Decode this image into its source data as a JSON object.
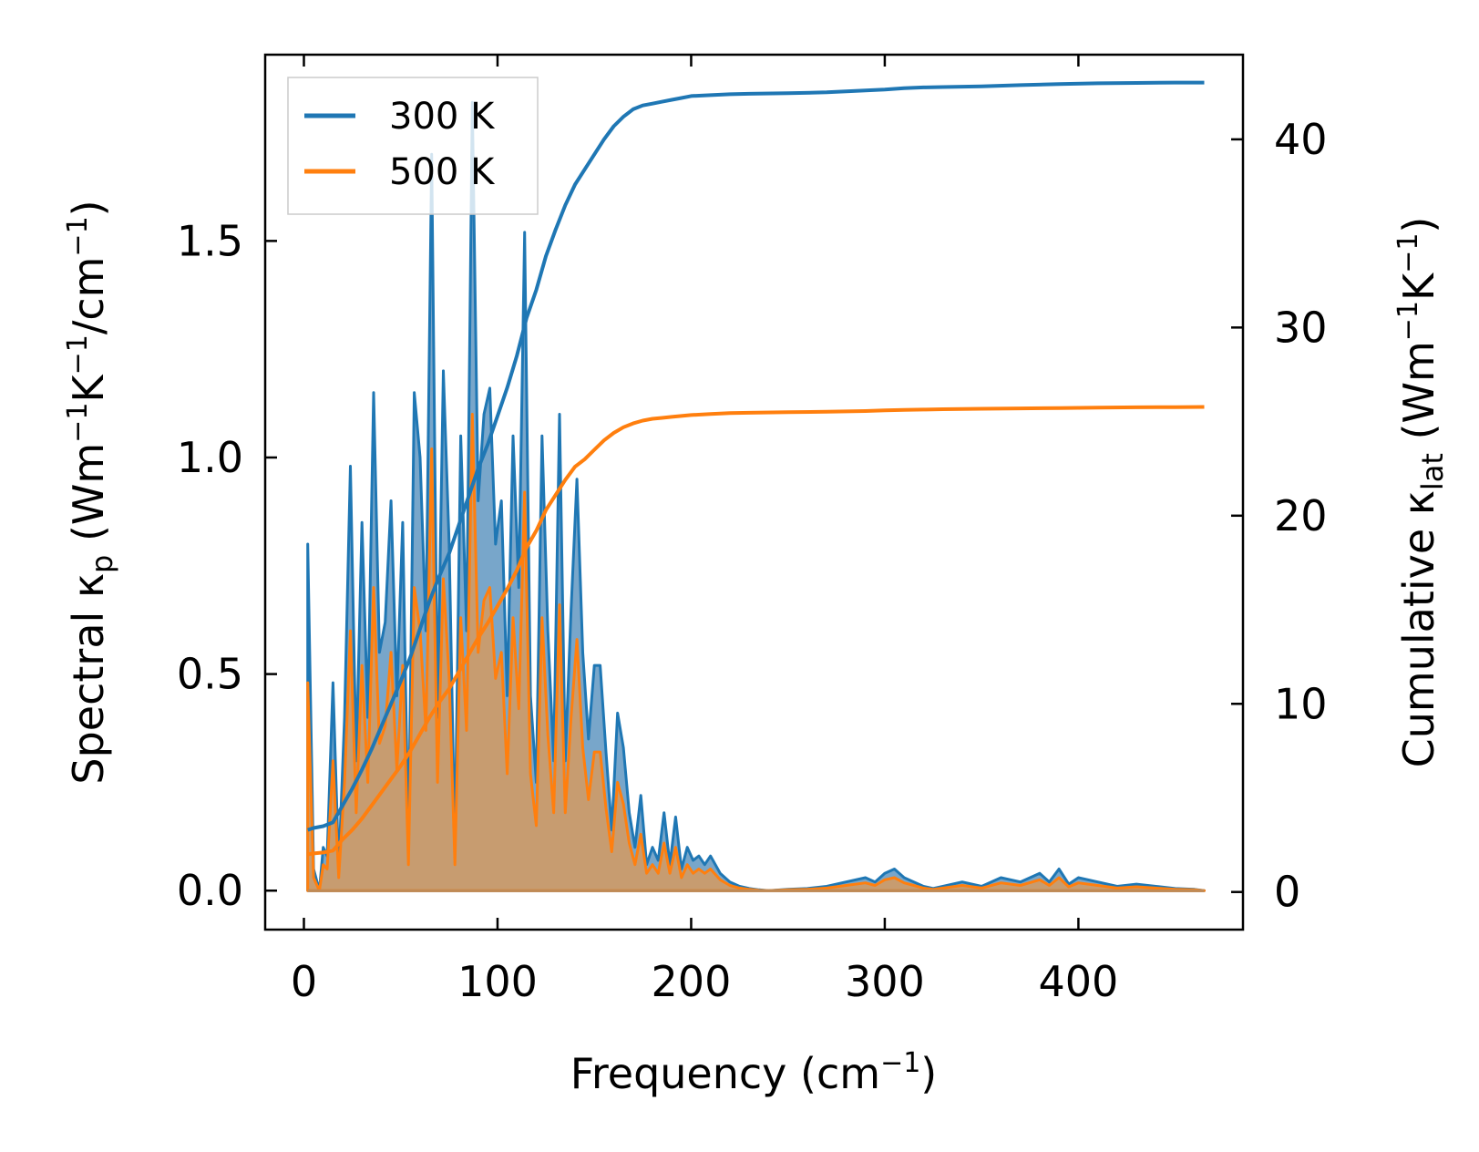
{
  "chart_data": {
    "type": "line",
    "xlabel": {
      "main": "Frequency (cm",
      "sup": "−1",
      "tail": ")"
    },
    "ylabel_left": {
      "p1": "Spectral κ",
      "sub": "p",
      "p2": " (Wm",
      "sup1": "−1",
      "p3": "K",
      "sup2": "−1",
      "p4": "/cm",
      "sup3": "−1",
      "p5": ")"
    },
    "ylabel_right": {
      "p1": "Cumulative κ",
      "sub": "lat",
      "p2": " (Wm",
      "sup1": "−1",
      "p3": "K",
      "sup2": "−1",
      "p4": ")"
    },
    "xlim": [
      -20,
      485
    ],
    "ylim_left": [
      -0.09,
      1.93
    ],
    "ylim_right": [
      -2.0,
      44.5
    ],
    "x_ticks": [
      0,
      100,
      200,
      300,
      400
    ],
    "x_tick_labels": [
      "0",
      "100",
      "200",
      "300",
      "400"
    ],
    "y_left_ticks": [
      0.0,
      0.5,
      1.0,
      1.5
    ],
    "y_left_tick_labels": [
      "0.0",
      "0.5",
      "1.0",
      "1.5"
    ],
    "y_right_ticks": [
      0,
      10,
      20,
      30,
      40
    ],
    "y_right_tick_labels": [
      "0",
      "10",
      "20",
      "30",
      "40"
    ],
    "legend": {
      "location": "upper-left",
      "entries": [
        "300 K",
        "500 K"
      ]
    },
    "colors": {
      "s300": "#1f77b4",
      "s500": "#ff7f0e",
      "fill300": "#78a6ca",
      "fill500": "#c79c70"
    },
    "spectral": {
      "x": [
        2,
        5,
        8,
        10,
        12,
        15,
        18,
        21,
        24,
        27,
        30,
        33,
        36,
        39,
        42,
        45,
        48,
        51,
        54,
        57,
        60,
        63,
        66,
        69,
        72,
        75,
        78,
        81,
        84,
        87,
        90,
        93,
        96,
        99,
        102,
        105,
        108,
        111,
        114,
        117,
        120,
        123,
        126,
        129,
        132,
        135,
        138,
        141,
        144,
        147,
        150,
        153,
        156,
        159,
        162,
        165,
        168,
        171,
        174,
        177,
        180,
        183,
        186,
        189,
        192,
        195,
        198,
        201,
        204,
        207,
        210,
        215,
        220,
        225,
        230,
        235,
        240,
        250,
        260,
        270,
        280,
        290,
        295,
        300,
        305,
        310,
        315,
        320,
        325,
        330,
        340,
        350,
        360,
        370,
        380,
        385,
        390,
        395,
        400,
        410,
        420,
        430,
        440,
        450,
        460,
        465
      ],
      "s300": [
        0.8,
        0.05,
        0.0,
        0.1,
        0.08,
        0.48,
        0.05,
        0.4,
        0.98,
        0.3,
        0.85,
        0.4,
        1.15,
        0.55,
        0.62,
        0.9,
        0.45,
        0.85,
        0.1,
        1.15,
        1.0,
        0.6,
        1.7,
        0.4,
        1.2,
        0.8,
        0.1,
        1.05,
        0.6,
        1.82,
        0.9,
        1.1,
        1.16,
        0.8,
        0.9,
        0.45,
        1.05,
        0.7,
        1.52,
        0.45,
        0.25,
        1.05,
        0.6,
        0.3,
        1.1,
        0.3,
        0.65,
        0.95,
        0.55,
        0.35,
        0.52,
        0.52,
        0.32,
        0.14,
        0.41,
        0.33,
        0.18,
        0.1,
        0.22,
        0.06,
        0.1,
        0.07,
        0.18,
        0.06,
        0.17,
        0.05,
        0.1,
        0.07,
        0.08,
        0.06,
        0.08,
        0.04,
        0.02,
        0.01,
        0.005,
        0.002,
        0.0,
        0.003,
        0.005,
        0.01,
        0.02,
        0.03,
        0.02,
        0.04,
        0.05,
        0.03,
        0.02,
        0.01,
        0.005,
        0.01,
        0.02,
        0.01,
        0.03,
        0.02,
        0.04,
        0.02,
        0.05,
        0.015,
        0.03,
        0.02,
        0.01,
        0.015,
        0.01,
        0.005,
        0.003,
        0.0
      ],
      "s500": [
        0.48,
        0.03,
        0.0,
        0.06,
        0.05,
        0.3,
        0.03,
        0.25,
        0.6,
        0.18,
        0.52,
        0.25,
        0.7,
        0.34,
        0.38,
        0.55,
        0.28,
        0.52,
        0.06,
        0.7,
        0.6,
        0.37,
        1.02,
        0.25,
        0.72,
        0.49,
        0.06,
        0.63,
        0.37,
        1.1,
        0.55,
        0.67,
        0.7,
        0.49,
        0.55,
        0.27,
        0.63,
        0.42,
        0.92,
        0.27,
        0.15,
        0.63,
        0.36,
        0.18,
        0.66,
        0.18,
        0.4,
        0.58,
        0.33,
        0.21,
        0.32,
        0.32,
        0.19,
        0.09,
        0.25,
        0.2,
        0.11,
        0.06,
        0.13,
        0.04,
        0.06,
        0.04,
        0.11,
        0.04,
        0.1,
        0.03,
        0.06,
        0.04,
        0.05,
        0.04,
        0.05,
        0.025,
        0.012,
        0.006,
        0.003,
        0.001,
        0.0,
        0.002,
        0.003,
        0.006,
        0.012,
        0.018,
        0.012,
        0.025,
        0.03,
        0.018,
        0.012,
        0.006,
        0.003,
        0.006,
        0.012,
        0.006,
        0.018,
        0.012,
        0.025,
        0.012,
        0.03,
        0.009,
        0.018,
        0.012,
        0.006,
        0.009,
        0.006,
        0.003,
        0.002,
        0.0
      ]
    },
    "cumulative": {
      "x": [
        2,
        5,
        10,
        15,
        20,
        25,
        30,
        35,
        40,
        45,
        50,
        55,
        60,
        65,
        70,
        75,
        80,
        85,
        90,
        95,
        100,
        105,
        110,
        115,
        120,
        125,
        130,
        135,
        140,
        145,
        150,
        155,
        160,
        165,
        170,
        175,
        180,
        185,
        190,
        195,
        200,
        210,
        220,
        230,
        250,
        270,
        290,
        300,
        310,
        320,
        330,
        350,
        370,
        390,
        410,
        430,
        450,
        465
      ],
      "c300": [
        3.3,
        3.4,
        3.5,
        3.7,
        4.6,
        5.5,
        6.5,
        7.6,
        8.8,
        10.0,
        11.2,
        12.5,
        14.0,
        15.5,
        16.8,
        18.0,
        19.5,
        21.0,
        22.5,
        23.8,
        25.3,
        26.8,
        28.5,
        30.5,
        32.0,
        33.8,
        35.2,
        36.5,
        37.6,
        38.4,
        39.2,
        40.0,
        40.7,
        41.2,
        41.6,
        41.8,
        41.9,
        42.0,
        42.1,
        42.2,
        42.3,
        42.35,
        42.4,
        42.42,
        42.45,
        42.5,
        42.6,
        42.65,
        42.72,
        42.76,
        42.78,
        42.82,
        42.88,
        42.94,
        42.98,
        43.0,
        43.02,
        43.02
      ],
      "c500": [
        2.0,
        2.05,
        2.1,
        2.2,
        2.8,
        3.3,
        3.9,
        4.6,
        5.3,
        6.0,
        6.7,
        7.5,
        8.4,
        9.3,
        10.1,
        10.8,
        11.7,
        12.6,
        13.5,
        14.3,
        15.2,
        16.1,
        17.1,
        18.3,
        19.2,
        20.3,
        21.1,
        21.9,
        22.6,
        23.0,
        23.5,
        24.0,
        24.4,
        24.7,
        24.9,
        25.05,
        25.15,
        25.2,
        25.25,
        25.3,
        25.35,
        25.4,
        25.45,
        25.47,
        25.5,
        25.52,
        25.56,
        25.6,
        25.62,
        25.64,
        25.66,
        25.68,
        25.7,
        25.72,
        25.74,
        25.76,
        25.77,
        25.78
      ]
    }
  }
}
